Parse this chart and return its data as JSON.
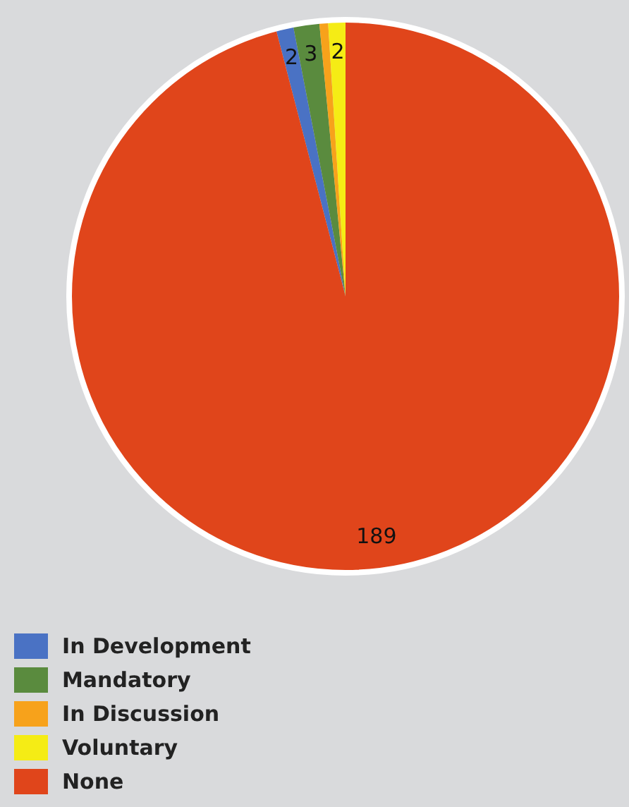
{
  "chart_data": {
    "type": "pie",
    "categories": [
      "In Development",
      "Mandatory",
      "In Discussion",
      "Voluntary",
      "None"
    ],
    "values": [
      2,
      3,
      1,
      2,
      189
    ],
    "colors": [
      "#4a72c4",
      "#5a8b3e",
      "#f7a21b",
      "#f5ec15",
      "#e0451b"
    ],
    "value_labels": [
      "2",
      "3",
      null,
      "2",
      "189"
    ],
    "legend": "bottom left"
  }
}
